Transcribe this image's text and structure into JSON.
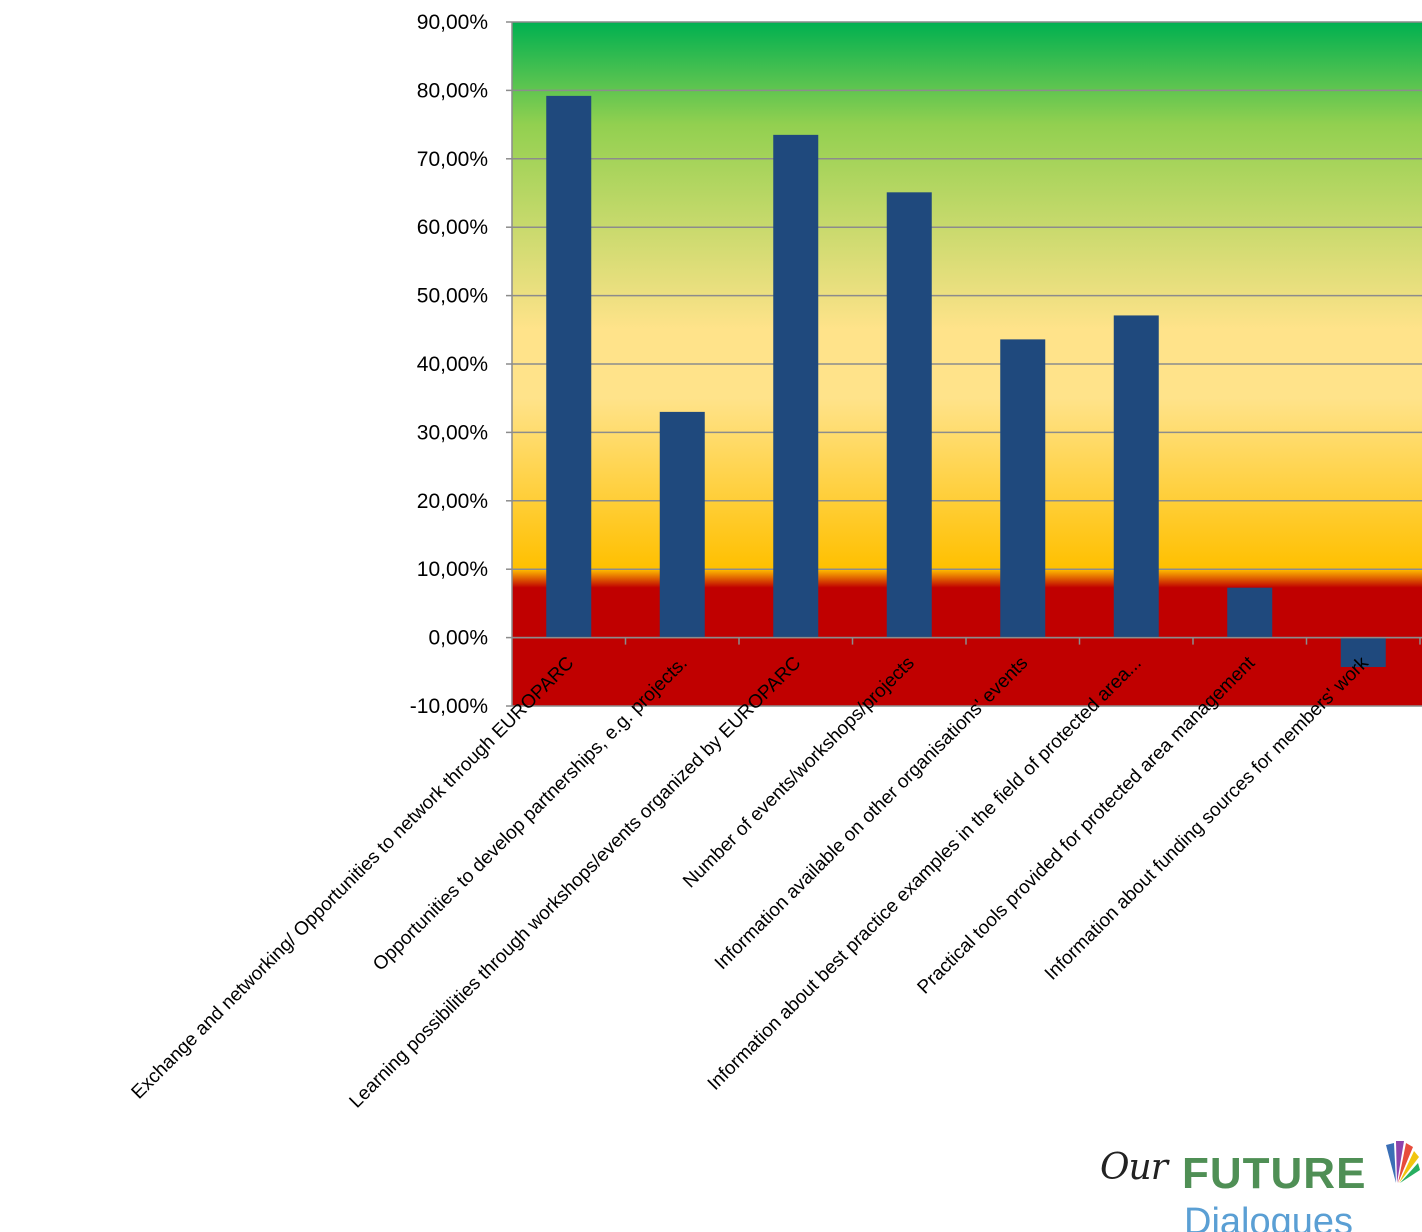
{
  "chart_data": {
    "type": "bar",
    "categories": [
      "Exchange and networking/ Opportunities to network through EUROPARC",
      "Opportunities to develop partnerships, e.g. projects.",
      "Learning possibilities through workshops/events organized by EUROPARC",
      "Number of events/workshops/projects",
      "Information available on other organisations' events",
      "Information about best practice examples in the field of protected area...",
      "Practical tools provided for protected area management",
      "Information about funding sources for members' work"
    ],
    "values": [
      79.2,
      33.0,
      73.5,
      65.1,
      43.6,
      47.1,
      7.3,
      -4.3
    ],
    "ylim": [
      -10,
      90
    ],
    "yticks": [
      -10,
      0,
      10,
      20,
      30,
      40,
      50,
      60,
      70,
      80,
      90
    ],
    "ytick_labels": [
      "-10,00%",
      "0,00%",
      "10,00%",
      "20,00%",
      "30,00%",
      "40,00%",
      "50,00%",
      "60,00%",
      "70,00%",
      "80,00%",
      "90,00%"
    ],
    "grid": true,
    "legend": "none",
    "bar_color": "#1f497d",
    "background_bands": {
      "red": "#c00000",
      "orange": "#ffc000",
      "yellow": "#ffe38a",
      "light_green": "#92d050",
      "green": "#00b050"
    }
  },
  "logo": {
    "our": "Our",
    "future": "FUTURE",
    "dialogues": "Dialogues"
  }
}
